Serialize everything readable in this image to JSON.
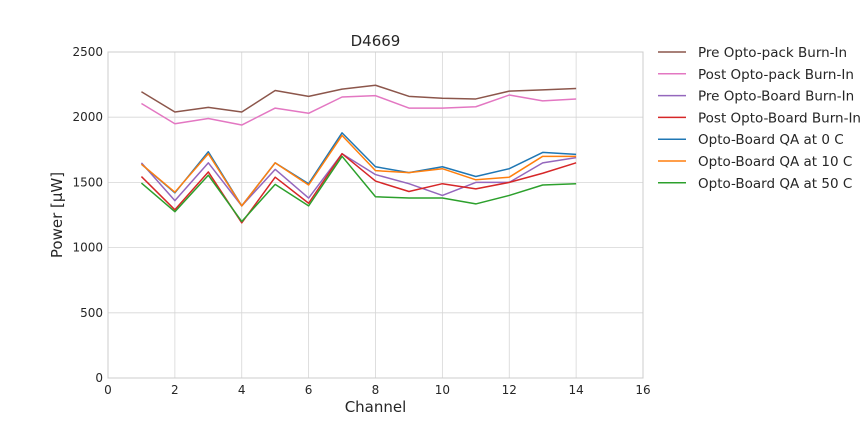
{
  "chart_data": {
    "type": "line",
    "title": "D4669",
    "xlabel": "Channel",
    "ylabel": "Power [μW]",
    "xlim": [
      0,
      16
    ],
    "ylim": [
      0,
      2500
    ],
    "xticks": [
      0,
      2,
      4,
      6,
      8,
      10,
      12,
      14,
      16
    ],
    "yticks": [
      0,
      500,
      1000,
      1500,
      2000,
      2500
    ],
    "grid": true,
    "legend_position": "outside-right",
    "x": [
      1,
      2,
      3,
      4,
      5,
      6,
      7,
      8,
      9,
      10,
      11,
      12,
      13,
      14
    ],
    "series": [
      {
        "name": "Pre Opto-pack Burn-In",
        "color": "#8c564b",
        "values": [
          2195,
          2040,
          2075,
          2040,
          2205,
          2160,
          2215,
          2245,
          2160,
          2145,
          2140,
          2200,
          2210,
          2220
        ]
      },
      {
        "name": "Post Opto-pack Burn-In",
        "color": "#e377c2",
        "values": [
          2105,
          1950,
          1990,
          1940,
          2070,
          2030,
          2155,
          2165,
          2070,
          2070,
          2080,
          2170,
          2125,
          2140
        ]
      },
      {
        "name": "Pre Opto-Board Burn-In",
        "color": "#9467bd",
        "values": [
          1650,
          1360,
          1650,
          1320,
          1600,
          1380,
          1720,
          1560,
          1490,
          1400,
          1500,
          1500,
          1650,
          1690
        ]
      },
      {
        "name": "Post Opto-Board Burn-In",
        "color": "#d62728",
        "values": [
          1545,
          1290,
          1580,
          1190,
          1540,
          1340,
          1720,
          1510,
          1430,
          1490,
          1450,
          1500,
          1570,
          1650
        ]
      },
      {
        "name": "Opto-Board QA at 0 C",
        "color": "#1f77b4",
        "values": [
          1640,
          1420,
          1735,
          1320,
          1650,
          1490,
          1880,
          1620,
          1575,
          1620,
          1545,
          1605,
          1730,
          1715
        ]
      },
      {
        "name": "Opto-Board QA at 10 C",
        "color": "#ff7f0e",
        "values": [
          1640,
          1425,
          1720,
          1320,
          1650,
          1480,
          1860,
          1590,
          1575,
          1605,
          1520,
          1540,
          1700,
          1700
        ]
      },
      {
        "name": "Opto-Board QA at 50 C",
        "color": "#2ca02c",
        "values": [
          1495,
          1275,
          1555,
          1200,
          1485,
          1320,
          1700,
          1390,
          1380,
          1380,
          1335,
          1400,
          1480,
          1490
        ]
      }
    ]
  }
}
